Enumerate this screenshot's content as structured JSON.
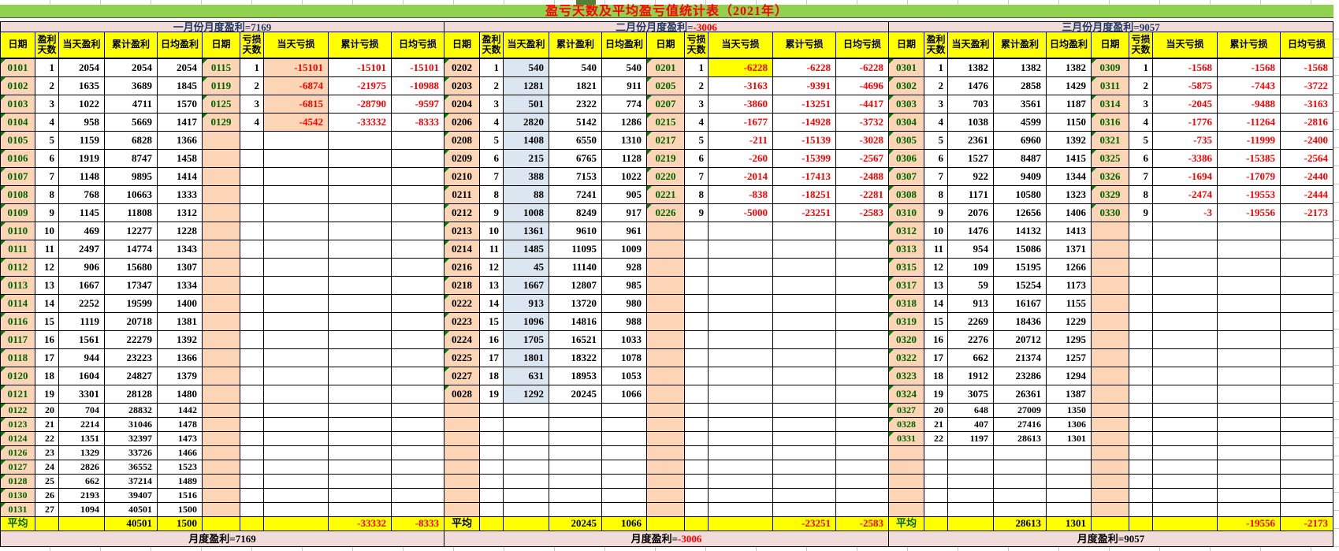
{
  "title": "盈亏天数及平均盈亏值统计表（2021年）",
  "avg_label": "平均",
  "columns": [
    "日期",
    "盈利天数",
    "当天盈利",
    "累计盈利",
    "日均盈利",
    "日期",
    "亏损天数",
    "当天亏损",
    "累计亏损",
    "日均亏损"
  ],
  "palette": {
    "green_bar": "#92D050",
    "title_red": "#FF0000",
    "pink_band": "#F2DCDB",
    "header_yellow": "#FFFF00",
    "date_peach": "#FBD5B5",
    "feb_profit_blue": "#DCE6F1",
    "date_green": "#006400",
    "negative_red": "#FF0000",
    "summary_navy": "#1F3864"
  },
  "months": [
    {
      "name": "january",
      "header_label": "一月份月度盈利=",
      "header_value": "7169",
      "header_value_color": "#1F3864",
      "footer_label": "月度盈利=",
      "footer_value": "7169",
      "footer_value_color": "#000000",
      "profit_date_color": "#006400",
      "profit_daily_bg": "",
      "loss_daily_bg": "#FBD5B5",
      "loss_daily_row0_bg": "",
      "avg_label_color": "#006400",
      "profit_rows": [
        [
          "0101",
          1,
          2054,
          2054,
          2054
        ],
        [
          "0102",
          2,
          1635,
          3689,
          1845
        ],
        [
          "0103",
          3,
          1022,
          4711,
          1570
        ],
        [
          "0104",
          4,
          958,
          5669,
          1417
        ],
        [
          "0105",
          5,
          1159,
          6828,
          1366
        ],
        [
          "0106",
          6,
          1919,
          8747,
          1458
        ],
        [
          "0107",
          7,
          1148,
          9895,
          1414
        ],
        [
          "0108",
          8,
          768,
          10663,
          1333
        ],
        [
          "0109",
          9,
          1145,
          11808,
          1312
        ],
        [
          "0110",
          10,
          469,
          12277,
          1228
        ],
        [
          "0111",
          11,
          2497,
          14774,
          1343
        ],
        [
          "0112",
          12,
          906,
          15680,
          1307
        ],
        [
          "0113",
          13,
          1667,
          17347,
          1334
        ],
        [
          "0114",
          14,
          2252,
          19599,
          1400
        ],
        [
          "0116",
          15,
          1119,
          20718,
          1381
        ],
        [
          "0117",
          16,
          1561,
          22279,
          1392
        ],
        [
          "0118",
          17,
          944,
          23223,
          1366
        ],
        [
          "0120",
          18,
          1604,
          24827,
          1379
        ],
        [
          "0121",
          19,
          3301,
          28128,
          1480
        ],
        [
          "0122",
          20,
          704,
          28832,
          1442
        ],
        [
          "0123",
          21,
          2214,
          31046,
          1478
        ],
        [
          "0124",
          22,
          1351,
          32397,
          1473
        ],
        [
          "0126",
          23,
          1329,
          33726,
          1466
        ],
        [
          "0127",
          24,
          2826,
          36552,
          1523
        ],
        [
          "0128",
          25,
          662,
          37214,
          1489
        ],
        [
          "0130",
          26,
          2193,
          39407,
          1516
        ],
        [
          "0131",
          27,
          1094,
          40501,
          1500
        ]
      ],
      "loss_rows": [
        [
          "0115",
          1,
          -15101,
          -15101,
          -15101
        ],
        [
          "0119",
          2,
          -6874,
          -21975,
          -10988
        ],
        [
          "0125",
          3,
          -6815,
          -28790,
          -9597
        ],
        [
          "0129",
          4,
          -4542,
          -33332,
          -8333
        ]
      ],
      "avg": {
        "cum_profit": 40501,
        "avg_profit": 1500,
        "cum_loss": -33332,
        "avg_loss": -8333
      }
    },
    {
      "name": "february",
      "header_label": "二月份月度盈利=",
      "header_value": "-3006",
      "header_value_color": "#FF0000",
      "footer_label": "月度盈利=",
      "footer_value": "-3006",
      "footer_value_color": "#FF0000",
      "profit_date_color": "#000000",
      "profit_daily_bg": "#DCE6F1",
      "loss_daily_bg": "",
      "loss_daily_row0_bg": "#FFFF00",
      "avg_label_color": "#000000",
      "profit_rows": [
        [
          "0202",
          1,
          540,
          540,
          540
        ],
        [
          "0203",
          2,
          1281,
          1821,
          911
        ],
        [
          "0204",
          3,
          501,
          2322,
          774
        ],
        [
          "0206",
          4,
          2820,
          5142,
          1286
        ],
        [
          "0208",
          5,
          1408,
          6550,
          1310
        ],
        [
          "0209",
          6,
          215,
          6765,
          1128
        ],
        [
          "0210",
          7,
          388,
          7153,
          1022
        ],
        [
          "0211",
          8,
          88,
          7241,
          905
        ],
        [
          "0212",
          9,
          1008,
          8249,
          917
        ],
        [
          "0213",
          10,
          1361,
          9610,
          961
        ],
        [
          "0214",
          11,
          1485,
          11095,
          1009
        ],
        [
          "0216",
          12,
          45,
          11140,
          928
        ],
        [
          "0218",
          13,
          1667,
          12807,
          985
        ],
        [
          "0222",
          14,
          913,
          13720,
          980
        ],
        [
          "0223",
          15,
          1096,
          14816,
          988
        ],
        [
          "0224",
          16,
          1705,
          16521,
          1033
        ],
        [
          "0225",
          17,
          1801,
          18322,
          1078
        ],
        [
          "0227",
          18,
          631,
          18953,
          1053
        ],
        [
          "0028",
          19,
          1292,
          20245,
          1066
        ]
      ],
      "loss_rows": [
        [
          "0201",
          1,
          -6228,
          -6228,
          -6228
        ],
        [
          "0205",
          2,
          -3163,
          -9391,
          -4696
        ],
        [
          "0207",
          3,
          -3860,
          -13251,
          -4417
        ],
        [
          "0215",
          4,
          -1677,
          -14928,
          -3732
        ],
        [
          "0217",
          5,
          -211,
          -15139,
          -3028
        ],
        [
          "0219",
          6,
          -260,
          -15399,
          -2567
        ],
        [
          "0220",
          7,
          -2014,
          -17413,
          -2488
        ],
        [
          "0221",
          8,
          -838,
          -18251,
          -2281
        ],
        [
          "0226",
          9,
          -5000,
          -23251,
          -2583
        ]
      ],
      "avg": {
        "cum_profit": 20245,
        "avg_profit": 1066,
        "cum_loss": -23251,
        "avg_loss": -2583
      }
    },
    {
      "name": "march",
      "header_label": "三月份月度盈利=",
      "header_value": "9057",
      "header_value_color": "#1F3864",
      "footer_label": "月度盈利=",
      "footer_value": "9057",
      "footer_value_color": "#000000",
      "profit_date_color": "#006400",
      "profit_daily_bg": "",
      "loss_daily_bg": "",
      "loss_daily_row0_bg": "",
      "avg_label_color": "#006400",
      "profit_rows": [
        [
          "0301",
          1,
          1382,
          1382,
          1382
        ],
        [
          "0302",
          2,
          1476,
          2858,
          1429
        ],
        [
          "0303",
          3,
          703,
          3561,
          1187
        ],
        [
          "0304",
          4,
          1038,
          4599,
          1150
        ],
        [
          "0305",
          5,
          2361,
          6960,
          1392
        ],
        [
          "0306",
          6,
          1527,
          8487,
          1415
        ],
        [
          "0307",
          7,
          922,
          9409,
          1344
        ],
        [
          "0308",
          8,
          1171,
          10580,
          1323
        ],
        [
          "0310",
          9,
          2076,
          12656,
          1406
        ],
        [
          "0312",
          10,
          1476,
          14132,
          1413
        ],
        [
          "0313",
          11,
          954,
          15086,
          1371
        ],
        [
          "0315",
          12,
          109,
          15195,
          1266
        ],
        [
          "0317",
          13,
          59,
          15254,
          1173
        ],
        [
          "0318",
          14,
          913,
          16167,
          1155
        ],
        [
          "0319",
          15,
          2269,
          18436,
          1229
        ],
        [
          "0320",
          16,
          2276,
          20712,
          1295
        ],
        [
          "0322",
          17,
          662,
          21374,
          1257
        ],
        [
          "0323",
          18,
          1912,
          23286,
          1294
        ],
        [
          "0324",
          19,
          3075,
          26361,
          1387
        ],
        [
          "0327",
          20,
          648,
          27009,
          1350
        ],
        [
          "0328",
          21,
          407,
          27416,
          1306
        ],
        [
          "0331",
          22,
          1197,
          28613,
          1301
        ]
      ],
      "loss_rows": [
        [
          "0309",
          1,
          -1568,
          -1568,
          -1568
        ],
        [
          "0311",
          2,
          -5875,
          -7443,
          -3722
        ],
        [
          "0314",
          3,
          -2045,
          -9488,
          -3163
        ],
        [
          "0316",
          4,
          -1776,
          -11264,
          -2816
        ],
        [
          "0321",
          5,
          -735,
          -11999,
          -2400
        ],
        [
          "0325",
          6,
          -3386,
          -15385,
          -2564
        ],
        [
          "0326",
          7,
          -1694,
          -17079,
          -2440
        ],
        [
          "0329",
          8,
          -2474,
          -19553,
          -2444
        ],
        [
          "0330",
          9,
          -3,
          -19556,
          -2173
        ]
      ],
      "avg": {
        "cum_profit": 28613,
        "avg_profit": 1301,
        "cum_loss": -19556,
        "avg_loss": -2173
      }
    }
  ]
}
